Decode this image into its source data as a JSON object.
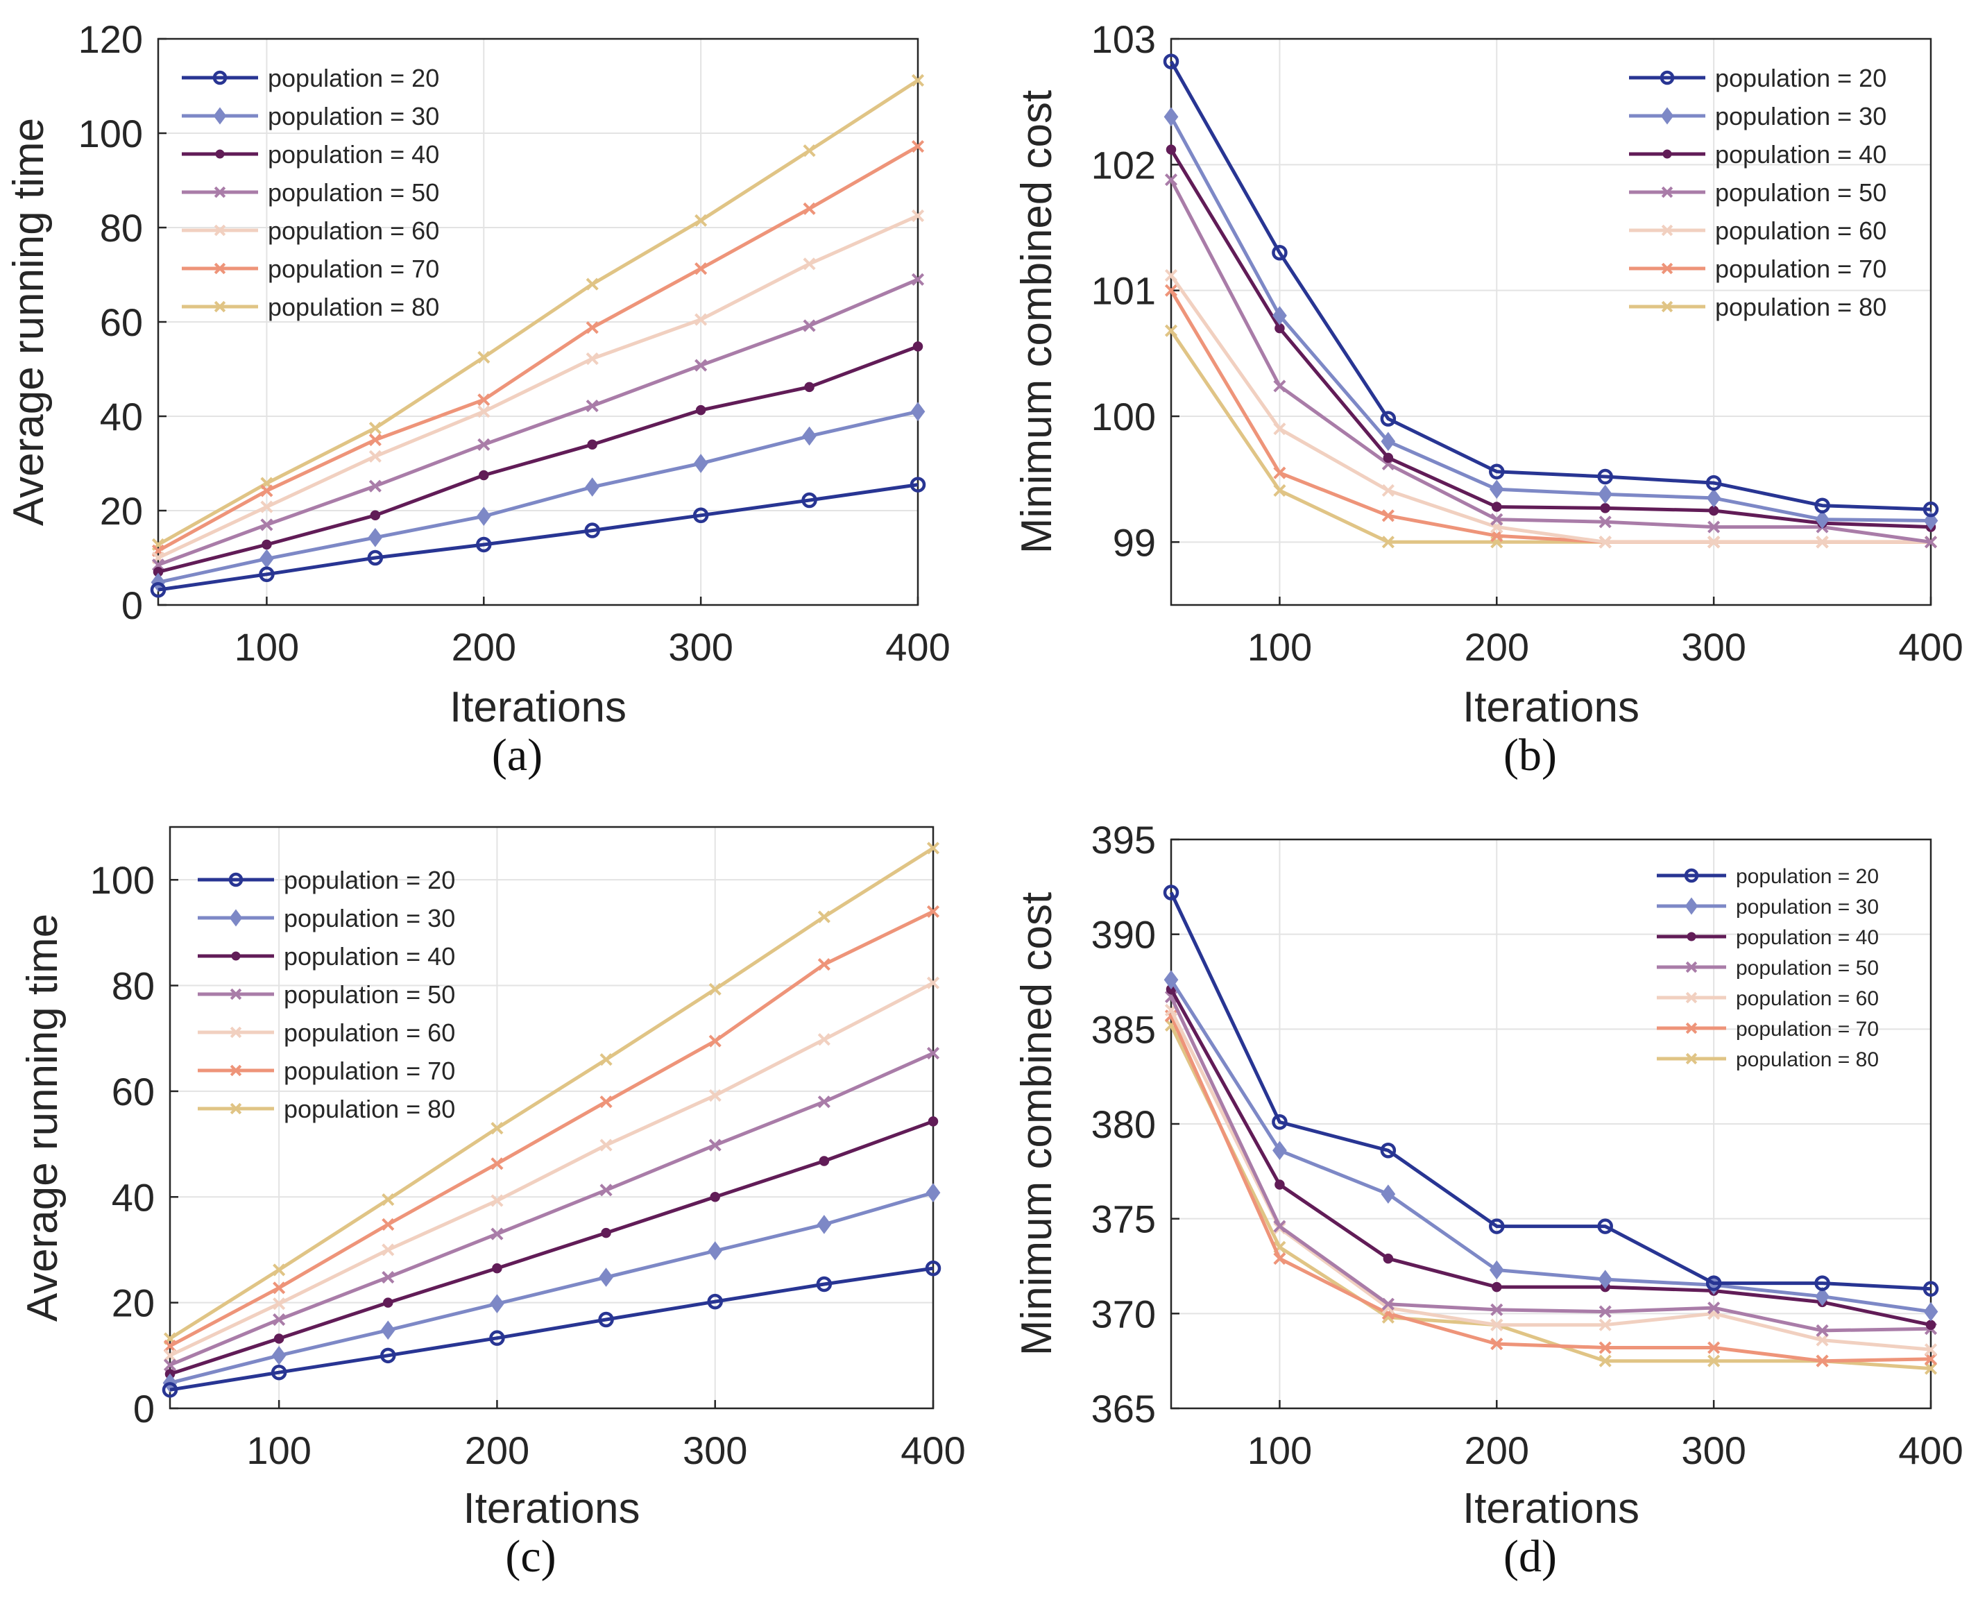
{
  "colors": {
    "population = 20": "#283593",
    "population = 30": "#7d88c6",
    "population = 40": "#611c57",
    "population = 50": "#a97ca8",
    "population = 60": "#f1d0c0",
    "population = 70": "#ee9479",
    "population = 80": "#e0c485",
    "grid": "#e3e3e3",
    "axis": "#262626"
  },
  "chart_data": [
    {
      "id": "a",
      "type": "line",
      "caption": "(a)",
      "xlabel": "Iterations",
      "ylabel": "Average running time",
      "xlim": [
        50,
        400
      ],
      "ylim": [
        0,
        120
      ],
      "xticks": [
        100,
        200,
        300,
        400
      ],
      "yticks": [
        0,
        20,
        40,
        60,
        80,
        100,
        120
      ],
      "legend_position": "top-left",
      "x": [
        50,
        100,
        150,
        200,
        250,
        300,
        350,
        400
      ],
      "series": [
        {
          "name": "population = 20",
          "marker": "circle",
          "values": [
            3.2,
            6.5,
            10,
            12.8,
            15.8,
            19,
            22.2,
            25.5
          ]
        },
        {
          "name": "population = 30",
          "marker": "diamond",
          "values": [
            4.8,
            9.8,
            14.3,
            18.8,
            25,
            30,
            35.8,
            41
          ]
        },
        {
          "name": "population = 40",
          "marker": "dot",
          "values": [
            7,
            12.8,
            19,
            27.5,
            34,
            41.3,
            46.2,
            54.8
          ]
        },
        {
          "name": "population = 50",
          "marker": "x",
          "values": [
            8.5,
            17,
            25.2,
            34,
            42.2,
            50.8,
            59.2,
            69
          ]
        },
        {
          "name": "population = 60",
          "marker": "x",
          "values": [
            10,
            20.8,
            31.5,
            41,
            52.2,
            60.5,
            72.3,
            82.5
          ]
        },
        {
          "name": "population = 70",
          "marker": "x",
          "values": [
            11.5,
            24.2,
            35,
            43.5,
            58.8,
            71.3,
            84,
            97.2
          ]
        },
        {
          "name": "population = 80",
          "marker": "x",
          "values": [
            12.8,
            25.8,
            37.5,
            52.5,
            68,
            81.5,
            96.3,
            111.2
          ]
        }
      ]
    },
    {
      "id": "b",
      "type": "line",
      "caption": "(b)",
      "xlabel": "Iterations",
      "ylabel": "Minimum combined cost",
      "xlim": [
        50,
        400
      ],
      "ylim": [
        98.5,
        103
      ],
      "xticks": [
        100,
        200,
        300,
        400
      ],
      "yticks": [
        99,
        100,
        101,
        102,
        103
      ],
      "legend_position": "top-right",
      "x": [
        50,
        100,
        150,
        200,
        250,
        300,
        350,
        400
      ],
      "series": [
        {
          "name": "population = 20",
          "marker": "circle",
          "values": [
            102.82,
            101.3,
            99.98,
            99.56,
            99.52,
            99.47,
            99.29,
            99.26
          ]
        },
        {
          "name": "population = 30",
          "marker": "diamond",
          "values": [
            102.38,
            100.8,
            99.8,
            99.42,
            99.38,
            99.35,
            99.18,
            99.17
          ]
        },
        {
          "name": "population = 40",
          "marker": "dot",
          "values": [
            102.12,
            100.7,
            99.67,
            99.28,
            99.27,
            99.25,
            99.15,
            99.12
          ]
        },
        {
          "name": "population = 50",
          "marker": "x",
          "values": [
            101.88,
            100.24,
            99.62,
            99.18,
            99.16,
            99.12,
            99.12,
            99.0
          ]
        },
        {
          "name": "population = 60",
          "marker": "x",
          "values": [
            101.12,
            99.9,
            99.41,
            99.12,
            99.0,
            99.0,
            99.0,
            99.0
          ]
        },
        {
          "name": "population = 70",
          "marker": "x",
          "values": [
            101.0,
            99.55,
            99.21,
            99.05,
            99.0,
            99.0,
            99.0,
            99.0
          ]
        },
        {
          "name": "population = 80",
          "marker": "x",
          "values": [
            100.68,
            99.41,
            99.0,
            99.0,
            99.0,
            99.0,
            99.0,
            99.0
          ]
        }
      ]
    },
    {
      "id": "c",
      "type": "line",
      "caption": "(c)",
      "xlabel": "Iterations",
      "ylabel": "Average running time",
      "xlim": [
        50,
        400
      ],
      "ylim": [
        0,
        110
      ],
      "xticks": [
        100,
        200,
        300,
        400
      ],
      "yticks": [
        0,
        20,
        40,
        60,
        80,
        100
      ],
      "legend_position": "top-left",
      "x": [
        50,
        100,
        150,
        200,
        250,
        300,
        350,
        400
      ],
      "series": [
        {
          "name": "population = 20",
          "marker": "circle",
          "values": [
            3.5,
            6.8,
            10,
            13.3,
            16.8,
            20.2,
            23.5,
            26.5
          ]
        },
        {
          "name": "population = 30",
          "marker": "diamond",
          "values": [
            4.8,
            10,
            14.8,
            19.8,
            24.8,
            29.8,
            34.8,
            40.8
          ]
        },
        {
          "name": "population = 40",
          "marker": "dot",
          "values": [
            6.5,
            13.2,
            20,
            26.5,
            33.2,
            40,
            46.8,
            54.3
          ]
        },
        {
          "name": "population = 50",
          "marker": "x",
          "values": [
            8.2,
            16.8,
            24.8,
            33,
            41.3,
            49.8,
            58,
            67.2
          ]
        },
        {
          "name": "population = 60",
          "marker": "x",
          "values": [
            10,
            19.8,
            30,
            39.3,
            49.8,
            59.2,
            69.8,
            80.5
          ]
        },
        {
          "name": "population = 70",
          "marker": "x",
          "values": [
            11.8,
            22.8,
            34.8,
            46.3,
            58,
            69.5,
            84,
            94
          ]
        },
        {
          "name": "population = 80",
          "marker": "x",
          "values": [
            13.2,
            26.2,
            39.5,
            53,
            66,
            79.3,
            93,
            106
          ]
        }
      ]
    },
    {
      "id": "d",
      "type": "line",
      "caption": "(d)",
      "xlabel": "Iterations",
      "ylabel": "Minimum combined cost",
      "xlim": [
        50,
        400
      ],
      "ylim": [
        365,
        395
      ],
      "xticks": [
        100,
        200,
        300,
        400
      ],
      "yticks": [
        365,
        370,
        375,
        380,
        385,
        390,
        395
      ],
      "legend_position": "top-right",
      "x": [
        50,
        100,
        150,
        200,
        250,
        300,
        350,
        400
      ],
      "series": [
        {
          "name": "population = 20",
          "marker": "circle",
          "values": [
            392.2,
            380.1,
            378.6,
            374.6,
            374.6,
            371.6,
            371.6,
            371.3
          ]
        },
        {
          "name": "population = 30",
          "marker": "diamond",
          "values": [
            387.6,
            378.6,
            376.3,
            372.3,
            371.8,
            371.5,
            370.9,
            370.1
          ]
        },
        {
          "name": "population = 40",
          "marker": "dot",
          "values": [
            387.1,
            376.8,
            372.9,
            371.4,
            371.4,
            371.2,
            370.6,
            369.4
          ]
        },
        {
          "name": "population = 50",
          "marker": "x",
          "values": [
            386.7,
            374.6,
            370.5,
            370.2,
            370.1,
            370.3,
            369.1,
            369.2
          ]
        },
        {
          "name": "population = 60",
          "marker": "x",
          "values": [
            386.0,
            374.5,
            370.3,
            369.4,
            369.4,
            370.0,
            368.6,
            368.1
          ]
        },
        {
          "name": "population = 70",
          "marker": "x",
          "values": [
            385.7,
            372.9,
            370.0,
            368.4,
            368.2,
            368.2,
            367.5,
            367.6
          ]
        },
        {
          "name": "population = 80",
          "marker": "x",
          "values": [
            385.2,
            373.5,
            369.8,
            369.4,
            367.5,
            367.5,
            367.5,
            367.1
          ]
        }
      ]
    }
  ]
}
